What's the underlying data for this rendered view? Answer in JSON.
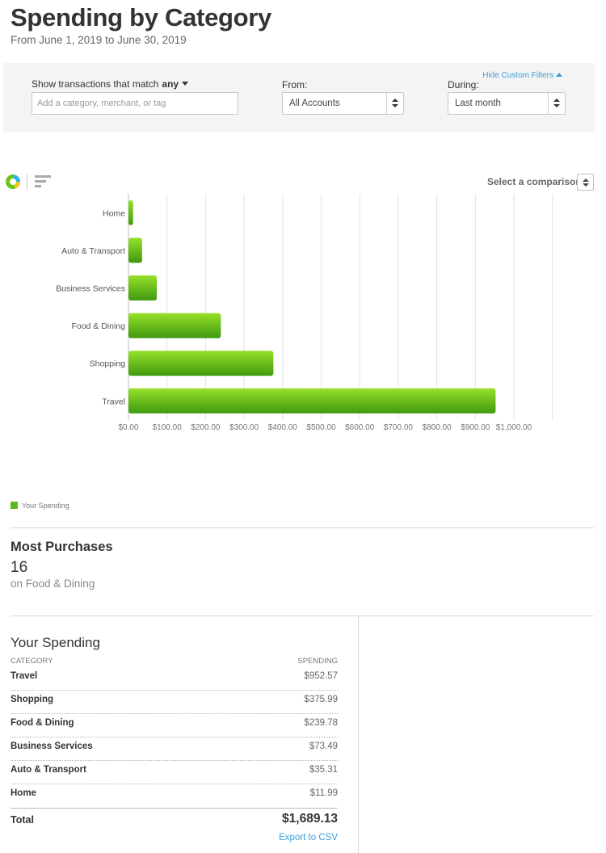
{
  "page": {
    "title": "Spending by Category",
    "date_range": "From June 1, 2019 to June 30, 2019"
  },
  "filters": {
    "hide_label": "Hide Custom Filters",
    "match_label": "Show transactions that match",
    "match_value": "any",
    "search_placeholder": "Add a category, merchant, or tag",
    "from_label": "From:",
    "from_value": "All Accounts",
    "during_label": "During:",
    "during_value": "Last month"
  },
  "toolbar": {
    "comparison_label": "Select a comparison",
    "views": [
      "pie-chart-icon",
      "bar-chart-icon"
    ]
  },
  "chart_data": {
    "type": "bar",
    "orientation": "horizontal",
    "categories": [
      "Home",
      "Auto & Transport",
      "Business Services",
      "Food & Dining",
      "Shopping",
      "Travel"
    ],
    "values": [
      11.99,
      35.31,
      73.49,
      239.78,
      375.99,
      952.57
    ],
    "xlim": [
      0,
      1100
    ],
    "x_ticks": [
      "$0.00",
      "$100.00",
      "$200.00",
      "$300.00",
      "$400.00",
      "$500.00",
      "$600.00",
      "$700.00",
      "$800.00",
      "$900.00",
      "$1,000.00"
    ],
    "grid": true,
    "series": [
      {
        "name": "Your Spending",
        "color": "#5fb81a"
      }
    ],
    "legend": "bottom-left"
  },
  "most_purchases": {
    "title": "Most Purchases",
    "count": "16",
    "subtitle": "on Food & Dining"
  },
  "table": {
    "title": "Your Spending",
    "col_category": "Category",
    "col_spending": "Spending",
    "rows": [
      {
        "category": "Travel",
        "amount": "$952.57"
      },
      {
        "category": "Shopping",
        "amount": "$375.99"
      },
      {
        "category": "Food & Dining",
        "amount": "$239.78"
      },
      {
        "category": "Business Services",
        "amount": "$73.49"
      },
      {
        "category": "Auto & Transport",
        "amount": "$35.31"
      },
      {
        "category": "Home",
        "amount": "$11.99"
      }
    ],
    "total_label": "Total",
    "total_amount": "$1,689.13",
    "export_label": "Export to CSV"
  }
}
